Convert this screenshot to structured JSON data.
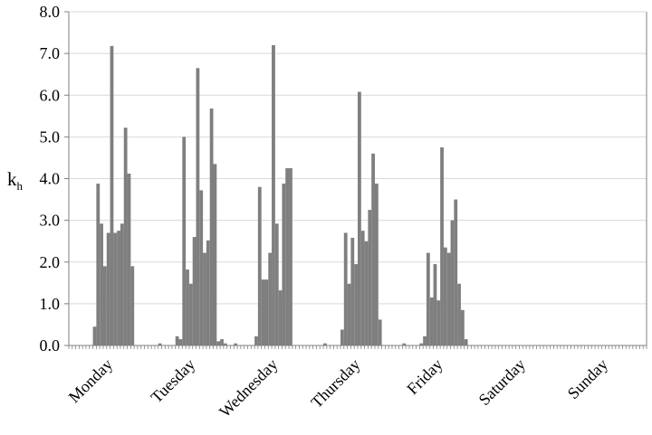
{
  "chart_data": {
    "type": "bar",
    "title": "",
    "xlabel": "",
    "ylabel": "k",
    "ylabel_subscript": "h",
    "ylim": [
      0,
      8
    ],
    "yticks": [
      "0.0",
      "1.0",
      "2.0",
      "3.0",
      "4.0",
      "5.0",
      "6.0",
      "7.0",
      "8.0"
    ],
    "grid": "horizontal",
    "bar_color": "#7f7f7f",
    "x_unit": "hour",
    "days": [
      "Monday",
      "Tuesday",
      "Wednesday",
      "Thursday",
      "Friday",
      "Saturday",
      "Sunday"
    ],
    "hours_per_day": 24,
    "values": [
      0,
      0,
      0,
      0,
      0,
      0,
      0,
      0.45,
      3.88,
      2.92,
      1.9,
      2.7,
      7.18,
      2.7,
      2.75,
      2.92,
      5.22,
      4.12,
      1.9,
      0,
      0,
      0,
      0,
      0,
      0,
      0,
      0.05,
      0,
      0,
      0,
      0,
      0.22,
      0.15,
      5.0,
      1.82,
      1.48,
      2.6,
      6.65,
      3.72,
      2.22,
      2.52,
      5.68,
      4.35,
      0.1,
      0.15,
      0.05,
      0,
      0,
      0.05,
      0,
      0,
      0,
      0,
      0,
      0.22,
      3.8,
      1.58,
      1.58,
      2.22,
      7.2,
      2.92,
      1.32,
      3.88,
      4.25,
      4.25,
      0,
      0,
      0,
      0,
      0,
      0,
      0,
      0,
      0,
      0.05,
      0,
      0,
      0,
      0,
      0.38,
      2.7,
      1.48,
      2.58,
      1.95,
      6.08,
      2.75,
      2.5,
      3.25,
      4.6,
      3.88,
      0.62,
      0,
      0,
      0,
      0,
      0,
      0,
      0.05,
      0,
      0,
      0,
      0,
      0.05,
      0.22,
      2.22,
      1.15,
      1.95,
      1.08,
      4.75,
      2.35,
      2.22,
      3.0,
      3.5,
      1.48,
      0.85,
      0.15,
      0,
      0,
      0,
      0,
      0,
      0,
      0,
      0,
      0,
      0,
      0,
      0,
      0,
      0,
      0,
      0,
      0,
      0,
      0,
      0,
      0,
      0,
      0,
      0,
      0,
      0,
      0,
      0,
      0,
      0,
      0,
      0,
      0,
      0,
      0,
      0,
      0,
      0,
      0,
      0,
      0,
      0,
      0,
      0,
      0,
      0,
      0,
      0,
      0,
      0,
      0,
      0
    ]
  }
}
